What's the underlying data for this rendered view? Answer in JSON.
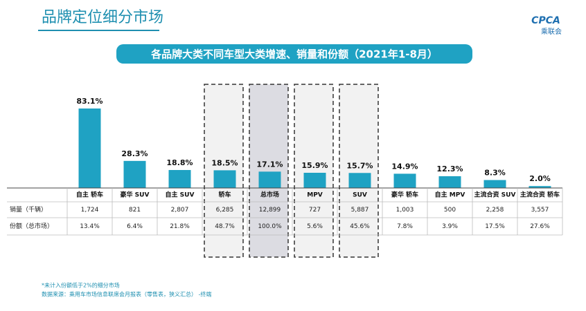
{
  "chart_data": {
    "type": "bar",
    "title": "品牌定位细分市场",
    "subtitle": "各品牌大类不同车型大类增速、销量和份额（2021年1-8月）",
    "logo": "CPCA",
    "logo_text": "乘联会",
    "categories": [
      "自主 轿车",
      "豪华 SUV",
      "自主 SUV",
      "轿车",
      "总市场",
      "MPV",
      "SUV",
      "豪华 轿车",
      "自主 MPV",
      "主流合资 SUV",
      "主流合资 轿车"
    ],
    "values": [
      83.1,
      28.3,
      18.8,
      18.5,
      17.1,
      15.9,
      15.7,
      14.9,
      12.3,
      8.3,
      2.0
    ],
    "value_labels": [
      "83.1%",
      "28.3%",
      "18.8%",
      "18.5%",
      "17.1%",
      "15.9%",
      "15.7%",
      "14.9%",
      "12.3%",
      "8.3%",
      "2.0%"
    ],
    "color": "#1fa2c3",
    "table": {
      "rows": [
        {
          "label": "销量（千辆）",
          "cells": [
            "1,724",
            "821",
            "2,807",
            "6,285",
            "12,899",
            "727",
            "5,887",
            "1,003",
            "500",
            "2,258",
            "3,557"
          ]
        },
        {
          "label": "份额（总市场）",
          "cells": [
            "13.4%",
            "6.4%",
            "21.8%",
            "48.7%",
            "100.0%",
            "5.6%",
            "45.6%",
            "7.8%",
            "3.9%",
            "17.5%",
            "27.6%"
          ]
        }
      ]
    },
    "notes": [
      "*未计入份额低于2%的细分市场",
      "数据来源：乘用车市场信息联席会月报表（零售表，狭义汇总） -终端"
    ]
  }
}
